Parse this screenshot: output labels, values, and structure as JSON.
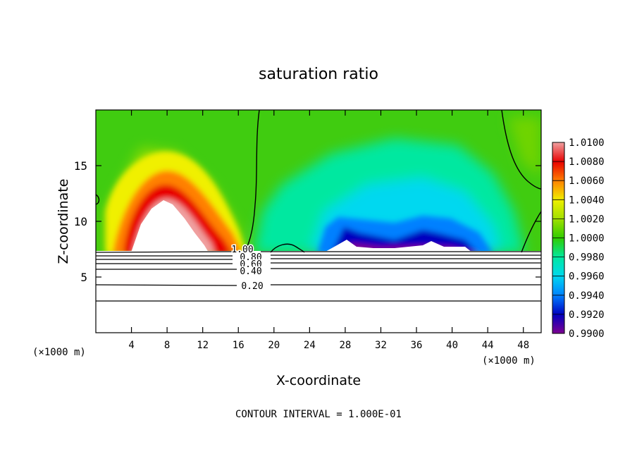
{
  "chart_data": {
    "type": "heatmap",
    "title": "saturation ratio",
    "xlabel": "X-coordinate",
    "ylabel": "Z-coordinate",
    "x_unit": "(×1000 m)",
    "z_unit": "(×1000 m)",
    "xlim": [
      0,
      50
    ],
    "ylim": [
      0,
      20
    ],
    "xticks": [
      4,
      8,
      12,
      16,
      20,
      24,
      28,
      32,
      36,
      40,
      44,
      48
    ],
    "yticks": [
      5,
      10,
      15
    ],
    "colorbar": {
      "levels": [
        "1.0100",
        "1.0080",
        "1.0060",
        "1.0040",
        "1.0020",
        "1.0000",
        "0.9980",
        "0.9960",
        "0.9940",
        "0.9920",
        "0.9900"
      ],
      "range": [
        0.99,
        1.01
      ],
      "colors": [
        "#f0a0a0",
        "#e80000",
        "#ff8000",
        "#f0f000",
        "#a0e000",
        "#30cc00",
        "#00e8a0",
        "#00d8f0",
        "#0080ff",
        "#0000c0",
        "#800090"
      ]
    },
    "contour_labels": [
      "1.00",
      "0.80",
      "0.60",
      "0.40",
      "0.20"
    ],
    "contour_interval_text": "CONTOUR INTERVAL = 1.000E-01"
  }
}
